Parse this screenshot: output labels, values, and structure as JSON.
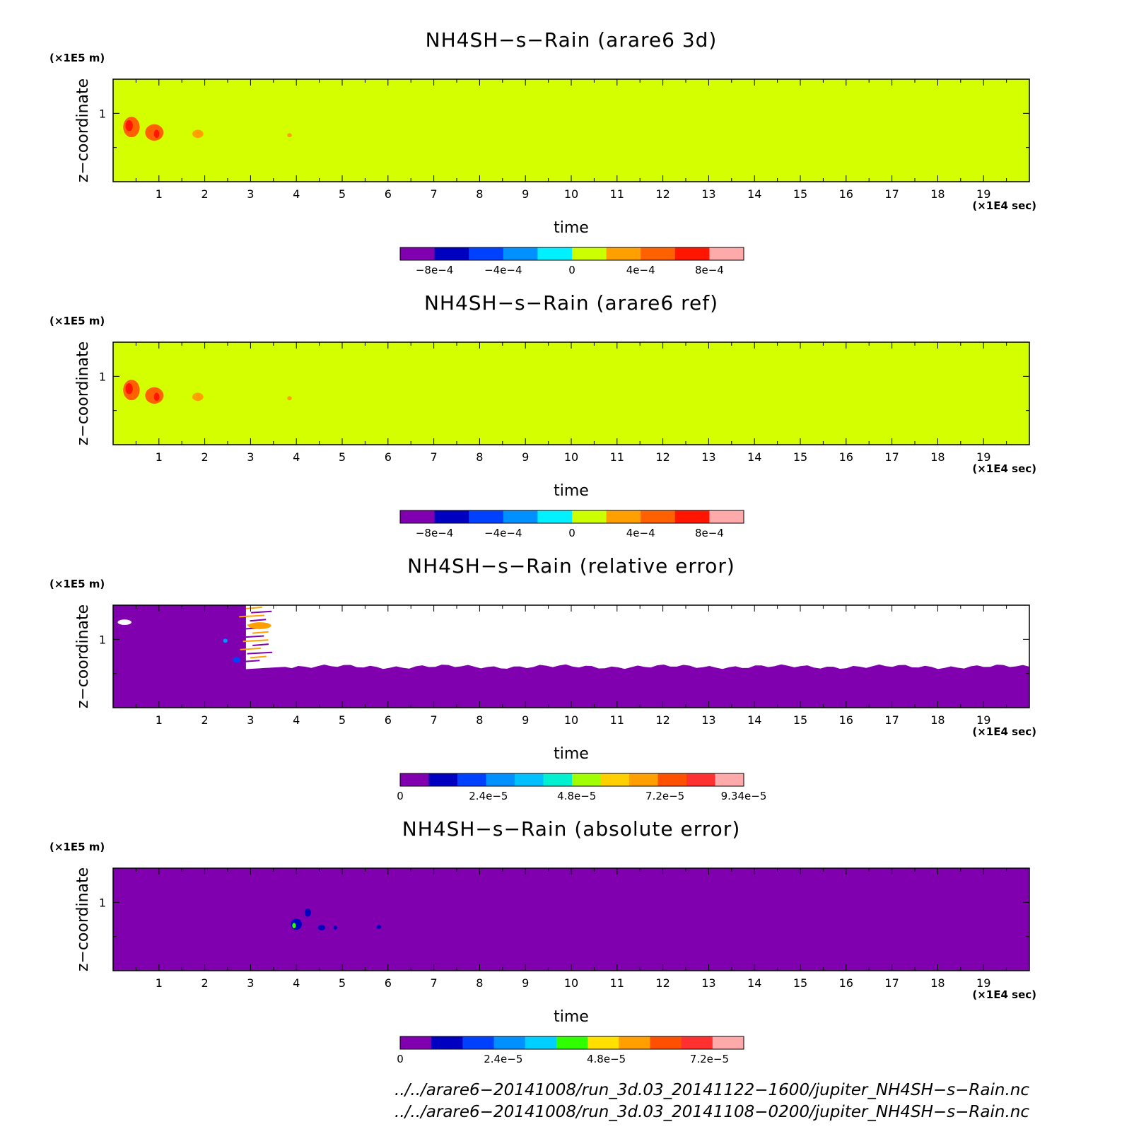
{
  "chart_data": [
    {
      "type": "heatmap",
      "title": "NH4SH−s−Rain (arare6 3d)",
      "xlabel": "time",
      "ylabel": "z−coordinate",
      "x_unit": "(×1E4 sec)",
      "y_unit": "(×1E5 m)",
      "xlim": [
        0,
        20
      ],
      "ylim": [
        0,
        1.5
      ],
      "x_ticks": [
        "1",
        "2",
        "3",
        "4",
        "5",
        "6",
        "7",
        "8",
        "9",
        "10",
        "11",
        "12",
        "13",
        "14",
        "15",
        "16",
        "17",
        "18",
        "19"
      ],
      "y_ticks": [
        "1"
      ],
      "background_color": "#d4ff00",
      "colorbar": {
        "colors": [
          "#8000b0",
          "#0000c0",
          "#0040ff",
          "#0090ff",
          "#00f0ff",
          "#ccff00",
          "#ffa000",
          "#ff6000",
          "#ff1500",
          "#ffaaaa"
        ],
        "tick_labels": [
          "−8e−4",
          "−4e−4",
          "0",
          "4e−4",
          "8e−4"
        ],
        "tick_positions": [
          -0.0008,
          -0.0004,
          0,
          0.0004,
          0.0008
        ],
        "range": [
          -0.001,
          0.001
        ]
      },
      "features": [
        {
          "kind": "blob",
          "x": 0.4,
          "y": 0.8,
          "rx": 0.18,
          "ry": 0.15,
          "color": "#ff6000"
        },
        {
          "kind": "blob",
          "x": 0.35,
          "y": 0.82,
          "rx": 0.08,
          "ry": 0.08,
          "color": "#ff1500"
        },
        {
          "kind": "blob",
          "x": 0.9,
          "y": 0.72,
          "rx": 0.2,
          "ry": 0.12,
          "color": "#ff6000"
        },
        {
          "kind": "blob",
          "x": 0.95,
          "y": 0.7,
          "rx": 0.06,
          "ry": 0.06,
          "color": "#ff1500"
        },
        {
          "kind": "blob",
          "x": 1.85,
          "y": 0.7,
          "rx": 0.12,
          "ry": 0.06,
          "color": "#ffa000"
        },
        {
          "kind": "blob",
          "x": 3.85,
          "y": 0.68,
          "rx": 0.05,
          "ry": 0.03,
          "color": "#ffa000"
        }
      ]
    },
    {
      "type": "heatmap",
      "title": "NH4SH−s−Rain (arare6 ref)",
      "xlabel": "time",
      "ylabel": "z−coordinate",
      "x_unit": "(×1E4 sec)",
      "y_unit": "(×1E5 m)",
      "xlim": [
        0,
        20
      ],
      "ylim": [
        0,
        1.5
      ],
      "x_ticks": [
        "1",
        "2",
        "3",
        "4",
        "5",
        "6",
        "7",
        "8",
        "9",
        "10",
        "11",
        "12",
        "13",
        "14",
        "15",
        "16",
        "17",
        "18",
        "19"
      ],
      "y_ticks": [
        "1"
      ],
      "background_color": "#d4ff00",
      "colorbar": {
        "colors": [
          "#8000b0",
          "#0000c0",
          "#0040ff",
          "#0090ff",
          "#00f0ff",
          "#ccff00",
          "#ffa000",
          "#ff6000",
          "#ff1500",
          "#ffaaaa"
        ],
        "tick_labels": [
          "−8e−4",
          "−4e−4",
          "0",
          "4e−4",
          "8e−4"
        ],
        "tick_positions": [
          -0.0008,
          -0.0004,
          0,
          0.0004,
          0.0008
        ],
        "range": [
          -0.001,
          0.001
        ]
      },
      "features": [
        {
          "kind": "blob",
          "x": 0.4,
          "y": 0.8,
          "rx": 0.18,
          "ry": 0.15,
          "color": "#ff6000"
        },
        {
          "kind": "blob",
          "x": 0.35,
          "y": 0.82,
          "rx": 0.08,
          "ry": 0.08,
          "color": "#ff1500"
        },
        {
          "kind": "blob",
          "x": 0.9,
          "y": 0.72,
          "rx": 0.2,
          "ry": 0.12,
          "color": "#ff6000"
        },
        {
          "kind": "blob",
          "x": 0.95,
          "y": 0.7,
          "rx": 0.06,
          "ry": 0.06,
          "color": "#ff1500"
        },
        {
          "kind": "blob",
          "x": 1.85,
          "y": 0.7,
          "rx": 0.12,
          "ry": 0.06,
          "color": "#ffa000"
        },
        {
          "kind": "blob",
          "x": 3.85,
          "y": 0.68,
          "rx": 0.05,
          "ry": 0.03,
          "color": "#ffa000"
        }
      ]
    },
    {
      "type": "heatmap",
      "title": "NH4SH−s−Rain (relative error)",
      "xlabel": "time",
      "ylabel": "z−coordinate",
      "x_unit": "(×1E4 sec)",
      "y_unit": "(×1E5 m)",
      "xlim": [
        0,
        20
      ],
      "ylim": [
        0,
        1.5
      ],
      "x_ticks": [
        "1",
        "2",
        "3",
        "4",
        "5",
        "6",
        "7",
        "8",
        "9",
        "10",
        "11",
        "12",
        "13",
        "14",
        "15",
        "16",
        "17",
        "18",
        "19"
      ],
      "y_ticks": [
        "1"
      ],
      "background_color": "#8000b0",
      "undefined_region": {
        "color": "#ffffff",
        "x_start": 2.9,
        "x_end": 20,
        "y_bottom": 0.6,
        "y_top": 1.5
      },
      "colorbar": {
        "colors": [
          "#8000b0",
          "#0000c0",
          "#0040ff",
          "#0090ff",
          "#00c0ff",
          "#00f0d0",
          "#a0ff00",
          "#ffd000",
          "#ffa000",
          "#ff5000",
          "#ff3030",
          "#ffaaaa"
        ],
        "tick_labels": [
          "0",
          "2.4e−5",
          "4.8e−5",
          "7.2e−5",
          "9.34e−5"
        ],
        "tick_positions": [
          0,
          2.4e-05,
          4.8e-05,
          7.2e-05,
          9.34e-05
        ],
        "range": [
          0,
          9.34e-05
        ]
      },
      "features": [
        {
          "kind": "blob",
          "x": 0.25,
          "y": 1.25,
          "rx": 0.15,
          "ry": 0.04,
          "color": "#ffffff"
        },
        {
          "kind": "blob",
          "x": 2.45,
          "y": 0.98,
          "rx": 0.05,
          "ry": 0.03,
          "color": "#0090ff"
        },
        {
          "kind": "blob",
          "x": 2.7,
          "y": 0.7,
          "rx": 0.08,
          "ry": 0.04,
          "color": "#0040ff"
        },
        {
          "kind": "blob",
          "x": 3.2,
          "y": 1.2,
          "rx": 0.25,
          "ry": 0.05,
          "color": "#ffa000"
        }
      ]
    },
    {
      "type": "heatmap",
      "title": "NH4SH−s−Rain (absolute error)",
      "xlabel": "time",
      "ylabel": "z−coordinate",
      "x_unit": "(×1E4 sec)",
      "y_unit": "(×1E5 m)",
      "xlim": [
        0,
        20
      ],
      "ylim": [
        0,
        1.5
      ],
      "x_ticks": [
        "1",
        "2",
        "3",
        "4",
        "5",
        "6",
        "7",
        "8",
        "9",
        "10",
        "11",
        "12",
        "13",
        "14",
        "15",
        "16",
        "17",
        "18",
        "19"
      ],
      "y_ticks": [
        "1"
      ],
      "background_color": "#8000b0",
      "colorbar": {
        "colors": [
          "#8000b0",
          "#0000c0",
          "#0040ff",
          "#0090ff",
          "#00d0ff",
          "#30ff00",
          "#ffe000",
          "#ffa000",
          "#ff5000",
          "#ff3030",
          "#ffaaaa"
        ],
        "tick_labels": [
          "0",
          "2.4e−5",
          "4.8e−5",
          "7.2e−5"
        ],
        "tick_positions": [
          0,
          2.4e-05,
          4.8e-05,
          7.2e-05
        ],
        "range": [
          0,
          8e-05
        ]
      },
      "features": [
        {
          "kind": "blob",
          "x": 4.0,
          "y": 0.68,
          "rx": 0.12,
          "ry": 0.08,
          "color": "#0000c0"
        },
        {
          "kind": "blob",
          "x": 3.95,
          "y": 0.66,
          "rx": 0.04,
          "ry": 0.04,
          "color": "#30ff00"
        },
        {
          "kind": "blob",
          "x": 4.25,
          "y": 0.85,
          "rx": 0.07,
          "ry": 0.06,
          "color": "#0000c0"
        },
        {
          "kind": "blob",
          "x": 4.55,
          "y": 0.63,
          "rx": 0.08,
          "ry": 0.04,
          "color": "#0000c0"
        },
        {
          "kind": "blob",
          "x": 4.85,
          "y": 0.63,
          "rx": 0.04,
          "ry": 0.03,
          "color": "#0000c0"
        },
        {
          "kind": "blob",
          "x": 5.8,
          "y": 0.64,
          "rx": 0.05,
          "ry": 0.03,
          "color": "#0000c0"
        }
      ]
    }
  ],
  "footer": {
    "line1": "../../arare6−20141008/run_3d.03_20141122−1600/jupiter_NH4SH−s−Rain.nc",
    "line2": "../../arare6−20141008/run_3d.03_20141108−0200/jupiter_NH4SH−s−Rain.nc"
  }
}
